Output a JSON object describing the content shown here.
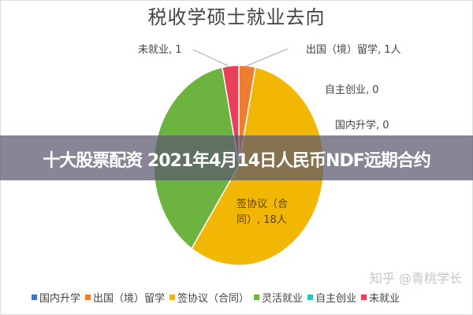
{
  "chart_data": {
    "type": "pie",
    "title": "税收学硕士就业去向",
    "categories": [
      "国内升学",
      "出国（境）留学",
      "签协议（合同）",
      "灵活就业",
      "自主创业",
      "未就业"
    ],
    "values": [
      0,
      1,
      18,
      12,
      0,
      1
    ],
    "colors": [
      "#4472C4",
      "#ED7D31",
      "#F2B705",
      "#6DB33F",
      "#2EC4B6",
      "#E8405A"
    ],
    "data_labels": {
      "国内升学": "国内升学, 0",
      "出国（境）留学": "出国（境）留学, 1人",
      "签协议（合同）": "签协议（合同）, 18人",
      "自主创业": "自主创业, 0",
      "未就业": "未就业, 1"
    },
    "legend_placement": "bottom"
  },
  "banner": {
    "text": "十大股票配资 2021年4月14日人民币NDF远期合约"
  },
  "watermark": "知乎 @青桃学长"
}
